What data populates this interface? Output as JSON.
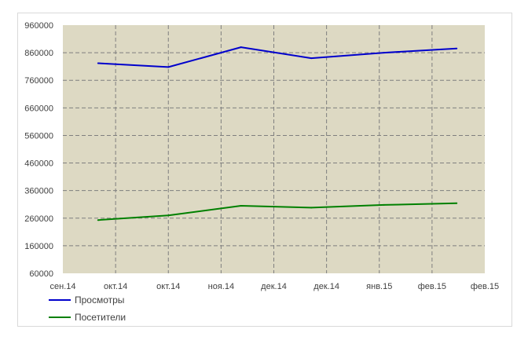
{
  "chart_data": {
    "type": "line",
    "title": "",
    "xlabel": "",
    "ylabel": "",
    "x_tick_labels": [
      "сен.14",
      "окт.14",
      "окт.14",
      "ноя.14",
      "дек.14",
      "дек.14",
      "янв.15",
      "фев.15",
      "фев.15"
    ],
    "x_range": [
      "2014-09-01",
      "2015-02-28"
    ],
    "ylim": [
      60000,
      960000
    ],
    "y_ticks": [
      60000,
      160000,
      260000,
      360000,
      460000,
      560000,
      660000,
      760000,
      860000,
      960000
    ],
    "grid": true,
    "legend_position": "bottom-left",
    "plot_background": "#ddd9c3",
    "series": [
      {
        "name": "Просмотры",
        "color": "#0000cc",
        "x": [
          "2014-09-16",
          "2014-10-16",
          "2014-11-16",
          "2014-12-16",
          "2015-01-16",
          "2015-02-16"
        ],
        "values": [
          822000,
          808000,
          880000,
          840000,
          860000,
          875000
        ]
      },
      {
        "name": "Посетители",
        "color": "#008000",
        "x": [
          "2014-09-16",
          "2014-10-16",
          "2014-11-16",
          "2014-12-16",
          "2015-01-16",
          "2015-02-16"
        ],
        "values": [
          253000,
          270000,
          305000,
          298000,
          308000,
          314000
        ]
      }
    ]
  }
}
